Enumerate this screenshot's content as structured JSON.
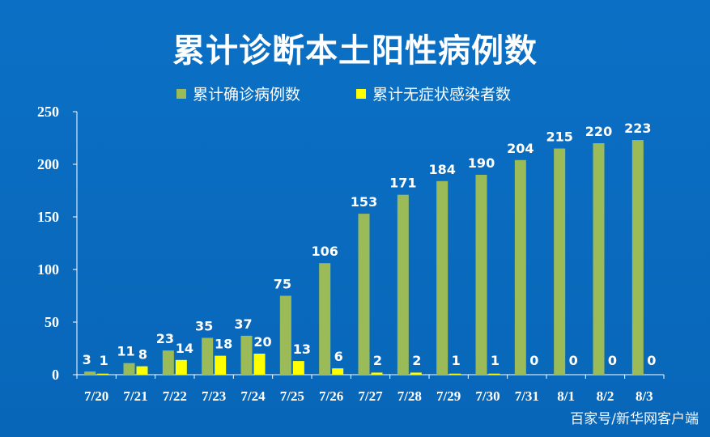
{
  "chart_data": {
    "type": "bar",
    "title": "累计诊断本土阳性病例数",
    "categories": [
      "7/20",
      "7/21",
      "7/22",
      "7/23",
      "7/24",
      "7/25",
      "7/26",
      "7/27",
      "7/28",
      "7/29",
      "7/30",
      "7/31",
      "8/1",
      "8/2",
      "8/3"
    ],
    "series": [
      {
        "name": "累计确诊病例数",
        "color": "#9bbb59",
        "values": [
          3,
          11,
          23,
          35,
          37,
          75,
          106,
          153,
          171,
          184,
          190,
          204,
          215,
          220,
          223
        ]
      },
      {
        "name": "累计无症状感染者数",
        "color": "#ffff00",
        "values": [
          1,
          8,
          14,
          18,
          20,
          13,
          6,
          2,
          2,
          1,
          1,
          0,
          0,
          0,
          0
        ]
      }
    ],
    "yticks": [
      0,
      50,
      100,
      150,
      200,
      250
    ],
    "ylim": [
      0,
      250
    ],
    "grid": false,
    "legend_position": "top"
  },
  "watermark": "百家号/新华网客户端",
  "colors": {
    "background": "#0a6cc0",
    "text": "#ffffff",
    "axis": "#ffffff"
  }
}
